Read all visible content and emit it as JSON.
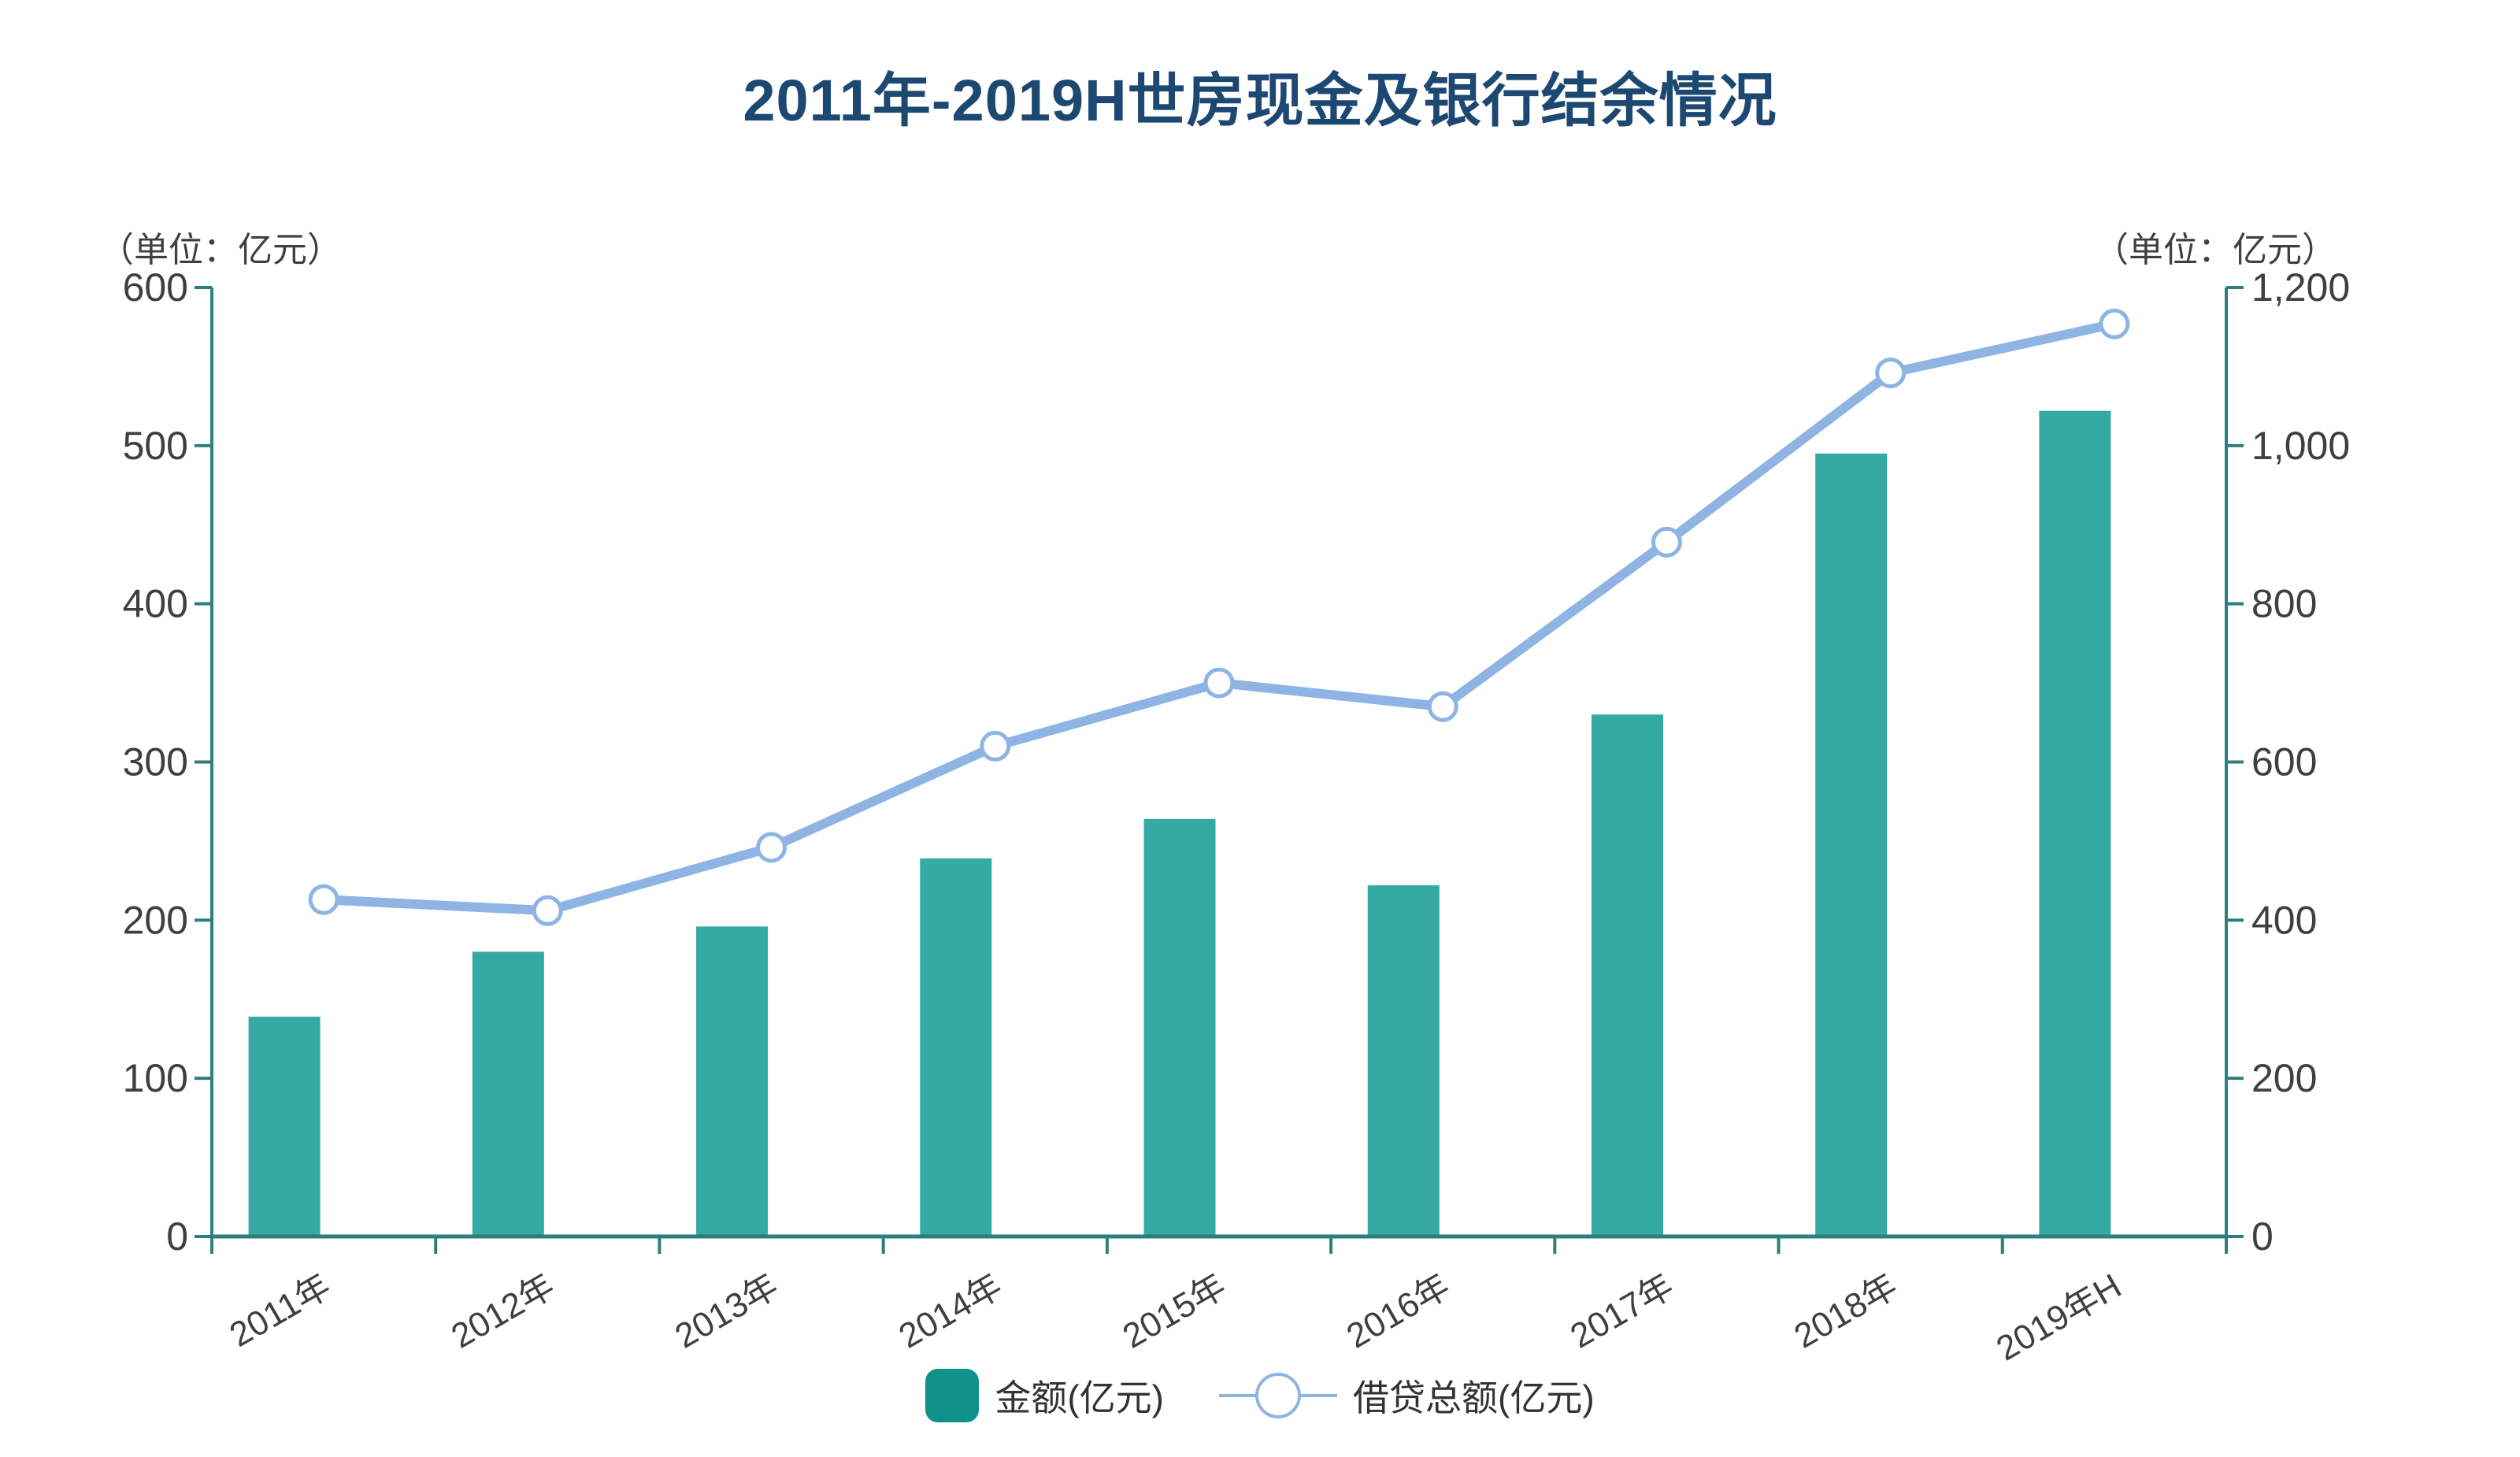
{
  "title": "2011年-2019H世房现金及银行结余情况",
  "left_axis": {
    "unit_label": "（单位：亿元）",
    "min": 0,
    "max": 600,
    "step": 100,
    "tick_labels": [
      "0",
      "100",
      "200",
      "300",
      "400",
      "500",
      "600"
    ]
  },
  "right_axis": {
    "unit_label": "（单位：亿元）",
    "min": 0,
    "max": 1200,
    "step": 200,
    "tick_labels": [
      "0",
      "200",
      "400",
      "600",
      "800",
      "1,000",
      "1,200"
    ]
  },
  "chart_data": {
    "type": "bar+line",
    "title": "2011年-2019H世房现金及银行结余情况",
    "categories": [
      "2011年",
      "2012年",
      "2013年",
      "2014年",
      "2015年",
      "2016年",
      "2017年",
      "2018年",
      "2019年H"
    ],
    "series": [
      {
        "name": "金额(亿元)",
        "type": "bar",
        "axis": "left",
        "color": "#35a9a4",
        "values": [
          139,
          180,
          196,
          239,
          264,
          222,
          330,
          495,
          522
        ]
      },
      {
        "name": "借贷总额(亿元)",
        "type": "line",
        "axis": "right",
        "color": "#8db4e2",
        "marker": "open-circle",
        "values": [
          426,
          412,
          492,
          620,
          700,
          670,
          878,
          1092,
          1154
        ]
      }
    ],
    "left_ylim": [
      0,
      600
    ],
    "right_ylim": [
      0,
      1200
    ],
    "grid": false,
    "legend_position": "bottom",
    "x_label_rotation_deg": -30
  },
  "legend": {
    "items": [
      {
        "label": "金额(亿元)",
        "type": "bar",
        "swatch_color": "#0f918a"
      },
      {
        "label": "借贷总额(亿元)",
        "type": "line",
        "marker_color": "#8db4e2"
      }
    ]
  },
  "colors": {
    "title_text": "#1c4872",
    "axis_line": "#2e7e7e",
    "tick_text": "#3f3f3f",
    "bar_fill": "#35a9a4",
    "line_stroke": "#8db4e2",
    "background": "#ffffff"
  }
}
